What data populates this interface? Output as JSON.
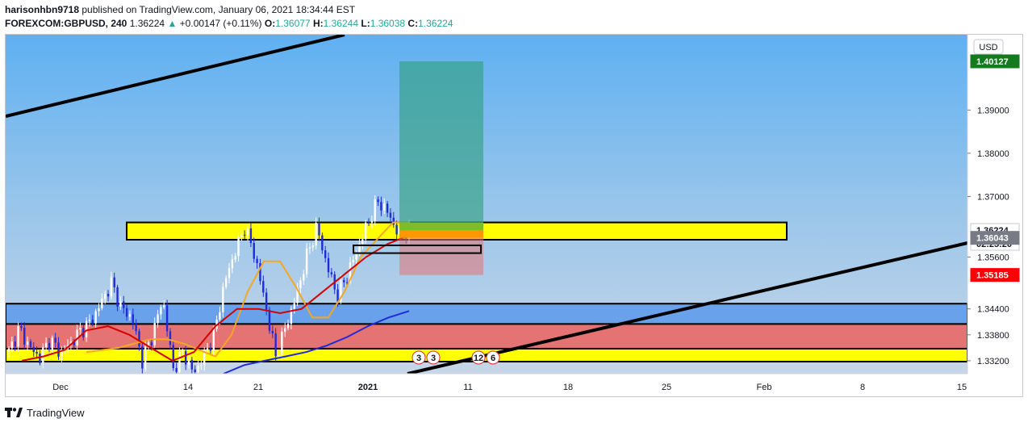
{
  "header": {
    "author": "harisonhbn9718",
    "published_text": "published on TradingView.com, January 06, 2021 18:34:44 EST",
    "symbol": "FOREXCOM:GBPUSD, 240",
    "last": "1.36224",
    "change_arrow": "▲",
    "change": "+0.00147 (+0.11%)",
    "o_label": "O:",
    "o_value": "1.36077",
    "h_label": "H:",
    "h_value": "1.36244",
    "l_label": "L:",
    "l_value": "1.36038",
    "c_label": "C:",
    "c_value": "1.36224"
  },
  "footer": {
    "brand": "TradingView",
    "logo_icon": "tradingview-logo-icon"
  },
  "chart_data": {
    "type": "candlestick",
    "currency": "USD",
    "ylim": [
      1.329,
      1.413
    ],
    "y_ticks": [
      "1.39000",
      "1.38000",
      "1.37000",
      "1.35600",
      "1.34400",
      "1.33800",
      "1.33200"
    ],
    "x_ticks": [
      "Dec",
      "14",
      "21",
      "2021",
      "11",
      "18",
      "25",
      "Feb",
      "8",
      "15"
    ],
    "price_badges": {
      "target": {
        "label": "1.40127",
        "value": 1.40127,
        "color": "#137a1e"
      },
      "last": {
        "label": "1.36224",
        "value": 1.36224,
        "color": "#ffffff"
      },
      "countdown": {
        "label": "02:25:20"
      },
      "entry": {
        "label": "1.36043",
        "value": 1.36043,
        "color": "#787b86"
      },
      "stop": {
        "label": "1.35185",
        "value": 1.35185,
        "color": "#ff0000"
      }
    },
    "series_approx": {
      "close": [
        1.334,
        1.3395,
        1.3352,
        1.3326,
        1.337,
        1.3338,
        1.336,
        1.339,
        1.341,
        1.3455,
        1.35,
        1.344,
        1.342,
        1.332,
        1.338,
        1.3465,
        1.33,
        1.334,
        1.329,
        1.333,
        1.338,
        1.35,
        1.357,
        1.363,
        1.356,
        1.345,
        1.333,
        1.34,
        1.347,
        1.356,
        1.363,
        1.354,
        1.347,
        1.352,
        1.358,
        1.364,
        1.369,
        1.366,
        1.361,
        1.3622
      ],
      "ema_fast_orange": [
        1.334,
        1.3345,
        1.335,
        1.336,
        1.337,
        1.337,
        1.336,
        1.3345,
        1.333,
        1.338,
        1.348,
        1.355,
        1.355,
        1.349,
        1.342,
        1.342,
        1.348,
        1.356,
        1.36,
        1.364,
        1.364
      ],
      "ema_red": [
        1.332,
        1.333,
        1.3345,
        1.339,
        1.34,
        1.338,
        1.335,
        1.332,
        1.334,
        1.34,
        1.344,
        1.344,
        1.343,
        1.344,
        1.348,
        1.352,
        1.356,
        1.359,
        1.361
      ],
      "sma_blue": [
        1.329,
        1.331,
        1.332,
        1.333,
        1.334,
        1.3355,
        1.3375,
        1.34,
        1.342,
        1.3435
      ]
    },
    "zones": [
      {
        "name": "resistance",
        "from": 1.36,
        "to": 1.364,
        "color": "#ffff00"
      },
      {
        "name": "blue-zone",
        "from": 1.3405,
        "to": 1.3452,
        "color": "#6aa1eb"
      },
      {
        "name": "red-zone",
        "from": 1.3344,
        "to": 1.3405,
        "color": "#e57373"
      },
      {
        "name": "support",
        "from": 1.3318,
        "to": 1.3348,
        "color": "#ffff00"
      }
    ],
    "position": {
      "entry": 1.36043,
      "target": 1.40127,
      "stop": 1.35185
    },
    "event_badges": [
      "3",
      "3",
      "12",
      "6"
    ],
    "grid": false
  }
}
